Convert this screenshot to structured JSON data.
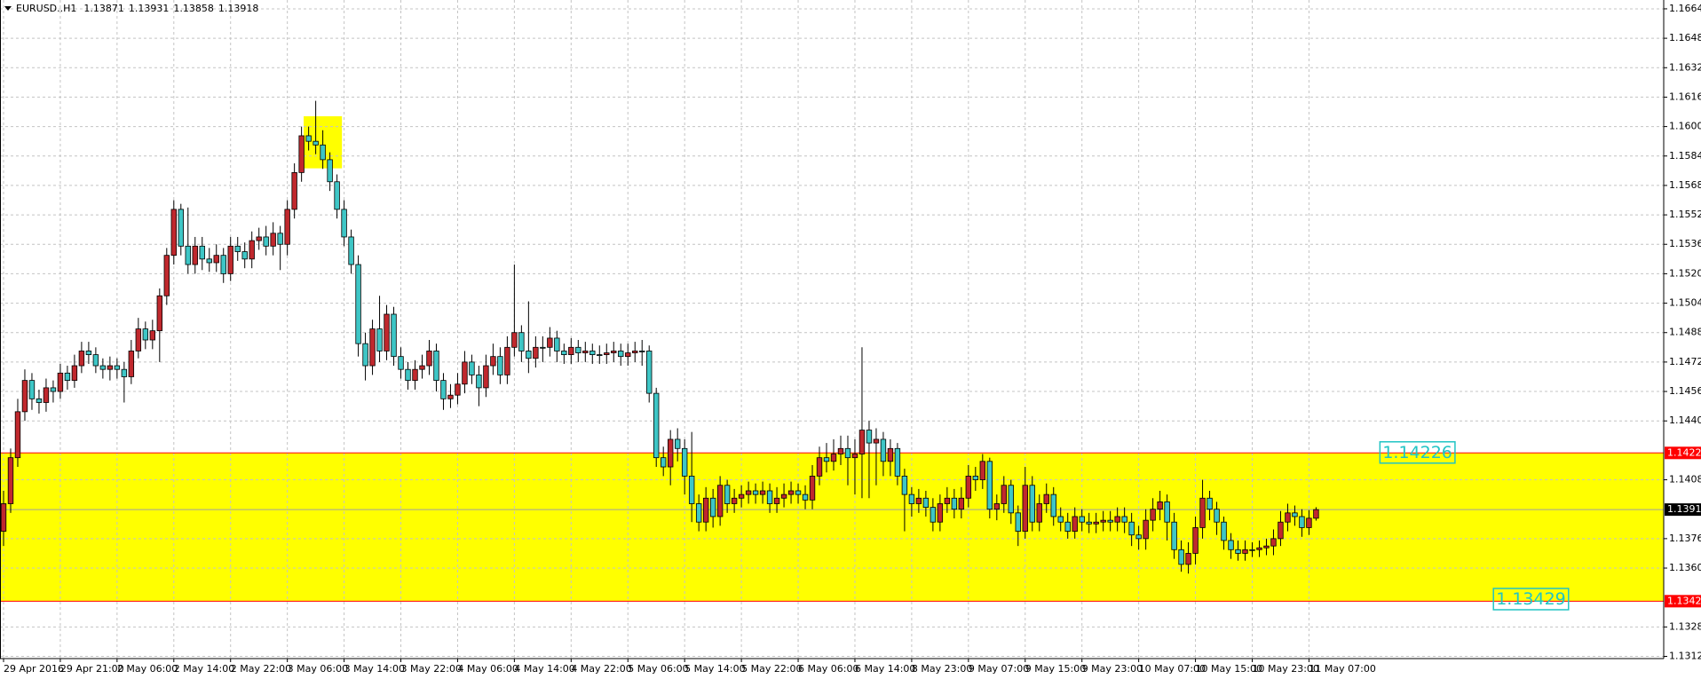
{
  "chart_data": {
    "type": "candlestick",
    "symbol": "EURUSD..H1",
    "open": [
      1.138,
      1.1395,
      1.142,
      1.1445,
      1.1462,
      1.1452,
      1.145,
      1.1458,
      1.1456,
      1.1466,
      1.1462,
      1.147,
      1.1478,
      1.1476,
      1.147,
      1.1468,
      1.147,
      1.1468,
      1.1464,
      1.1478,
      1.149,
      1.1484,
      1.1489,
      1.1508,
      1.153,
      1.1555,
      1.1535,
      1.1525,
      1.1535,
      1.1528,
      1.1526,
      1.153,
      1.152,
      1.1535,
      1.1532,
      1.1528,
      1.1538,
      1.154,
      1.1535,
      1.1542,
      1.1536,
      1.1555,
      1.1575,
      1.1595,
      1.1592,
      1.159,
      1.1582,
      1.157,
      1.1555,
      1.154,
      1.1525,
      1.1482,
      1.147,
      1.149,
      1.1478,
      1.1498,
      1.1475,
      1.1468,
      1.1462,
      1.1468,
      1.147,
      1.1478,
      1.1462,
      1.1452,
      1.1454,
      1.146,
      1.1472,
      1.1465,
      1.1458,
      1.147,
      1.1475,
      1.1465,
      1.148,
      1.1488,
      1.1478,
      1.1474,
      1.148,
      1.148,
      1.1485,
      1.1478,
      1.1476,
      1.148,
      1.1477,
      1.1478,
      1.1476,
      1.1476,
      1.1477,
      1.1478,
      1.1475,
      1.1477,
      1.1478,
      1.1478,
      1.1455,
      1.142,
      1.1415,
      1.143,
      1.1425,
      1.141,
      1.1395,
      1.1385,
      1.1398,
      1.1388,
      1.1405,
      1.1395,
      1.1398,
      1.14,
      1.1402,
      1.14,
      1.1402,
      1.1395,
      1.1398,
      1.14,
      1.1402,
      1.14,
      1.1397,
      1.141,
      1.142,
      1.1418,
      1.1422,
      1.1425,
      1.142,
      1.1422,
      1.1435,
      1.1428,
      1.143,
      1.1418,
      1.1425,
      1.141,
      1.14,
      1.1395,
      1.1398,
      1.1393,
      1.1385,
      1.1395,
      1.1398,
      1.1392,
      1.1398,
      1.141,
      1.1408,
      1.1418,
      1.1392,
      1.1395,
      1.1405,
      1.139,
      1.138,
      1.1405,
      1.1385,
      1.1395,
      1.14,
      1.1388,
      1.1385,
      1.138,
      1.1388,
      1.1385,
      1.1384,
      1.1385,
      1.1386,
      1.1385,
      1.1388,
      1.1385,
      1.1378,
      1.1376,
      1.1386,
      1.1392,
      1.1396,
      1.1385,
      1.137,
      1.1362,
      1.1368,
      1.1382,
      1.1398,
      1.1392,
      1.1385,
      1.1375,
      1.137,
      1.1368,
      1.137,
      1.137,
      1.1371,
      1.1372,
      1.1376,
      1.1385,
      1.139,
      1.1388,
      1.1382,
      1.13871
    ],
    "high": [
      1.1402,
      1.1425,
      1.1452,
      1.1468,
      1.1466,
      1.1457,
      1.1463,
      1.1462,
      1.1471,
      1.147,
      1.1476,
      1.1483,
      1.1483,
      1.148,
      1.1474,
      1.1475,
      1.1474,
      1.1472,
      1.1484,
      1.1496,
      1.1494,
      1.1495,
      1.1512,
      1.1534,
      1.156,
      1.1558,
      1.1556,
      1.154,
      1.154,
      1.1534,
      1.1536,
      1.1534,
      1.154,
      1.154,
      1.1537,
      1.1543,
      1.1545,
      1.1546,
      1.1548,
      1.1546,
      1.156,
      1.158,
      1.16,
      1.16,
      1.1614,
      1.1598,
      1.1586,
      1.1574,
      1.156,
      1.1544,
      1.153,
      1.1488,
      1.1495,
      1.1508,
      1.1503,
      1.1502,
      1.148,
      1.1472,
      1.1473,
      1.1476,
      1.1484,
      1.1482,
      1.1466,
      1.146,
      1.1466,
      1.1478,
      1.1476,
      1.147,
      1.1476,
      1.1482,
      1.148,
      1.1486,
      1.1525,
      1.1492,
      1.1505,
      1.1486,
      1.1486,
      1.1491,
      1.1489,
      1.1482,
      1.1485,
      1.1484,
      1.1483,
      1.1482,
      1.1481,
      1.1482,
      1.1483,
      1.1482,
      1.1482,
      1.1483,
      1.1484,
      1.1481,
      1.1458,
      1.1426,
      1.1435,
      1.1436,
      1.143,
      1.1434,
      1.14,
      1.1404,
      1.1403,
      1.141,
      1.1408,
      1.1403,
      1.1405,
      1.1407,
      1.1406,
      1.1407,
      1.1406,
      1.1404,
      1.1406,
      1.1407,
      1.1406,
      1.1405,
      1.1416,
      1.1426,
      1.1428,
      1.143,
      1.1432,
      1.1432,
      1.143,
      1.148,
      1.144,
      1.1436,
      1.1434,
      1.143,
      1.1428,
      1.1414,
      1.1404,
      1.1403,
      1.1402,
      1.1398,
      1.14,
      1.1404,
      1.1403,
      1.1404,
      1.1416,
      1.1415,
      1.1422,
      1.142,
      1.14,
      1.141,
      1.1408,
      1.1394,
      1.1415,
      1.141,
      1.14,
      1.1406,
      1.1404,
      1.1393,
      1.139,
      1.1393,
      1.1392,
      1.139,
      1.139,
      1.1391,
      1.1391,
      1.1393,
      1.1393,
      1.139,
      1.1383,
      1.1392,
      1.1398,
      1.1402,
      1.14,
      1.139,
      1.1375,
      1.1374,
      1.1388,
      1.1408,
      1.1402,
      1.1396,
      1.1388,
      1.1379,
      1.1375,
      1.1375,
      1.1374,
      1.1375,
      1.1376,
      1.1381,
      1.1391,
      1.1395,
      1.1394,
      1.1392,
      1.13915,
      1.13931
    ],
    "low": [
      1.1372,
      1.139,
      1.1415,
      1.144,
      1.1446,
      1.1444,
      1.1445,
      1.145,
      1.1452,
      1.1457,
      1.1458,
      1.1466,
      1.1471,
      1.1466,
      1.1463,
      1.1462,
      1.1463,
      1.145,
      1.146,
      1.1474,
      1.1479,
      1.1479,
      1.1472,
      1.1503,
      1.1525,
      1.153,
      1.152,
      1.152,
      1.1522,
      1.1521,
      1.1521,
      1.1515,
      1.1516,
      1.1527,
      1.1523,
      1.1523,
      1.1533,
      1.153,
      1.153,
      1.1522,
      1.153,
      1.155,
      1.157,
      1.1587,
      1.1585,
      1.1577,
      1.1565,
      1.155,
      1.1535,
      1.152,
      1.1475,
      1.1462,
      1.1465,
      1.1472,
      1.1473,
      1.147,
      1.1463,
      1.1457,
      1.1457,
      1.1463,
      1.1465,
      1.1456,
      1.1446,
      1.1447,
      1.1449,
      1.1455,
      1.146,
      1.1448,
      1.1453,
      1.1465,
      1.146,
      1.146,
      1.1475,
      1.1472,
      1.1466,
      1.1469,
      1.1472,
      1.1475,
      1.1472,
      1.1471,
      1.1471,
      1.1472,
      1.1472,
      1.1471,
      1.1471,
      1.1471,
      1.1472,
      1.147,
      1.147,
      1.1472,
      1.147,
      1.145,
      1.1415,
      1.141,
      1.1405,
      1.1418,
      1.14,
      1.1385,
      1.138,
      1.138,
      1.1382,
      1.1383,
      1.139,
      1.139,
      1.1393,
      1.1395,
      1.1395,
      1.1395,
      1.139,
      1.139,
      1.1393,
      1.1395,
      1.1395,
      1.1392,
      1.1392,
      1.1405,
      1.1412,
      1.1413,
      1.1416,
      1.1405,
      1.14,
      1.1398,
      1.1398,
      1.1405,
      1.141,
      1.141,
      1.1405,
      1.138,
      1.1388,
      1.139,
      1.1388,
      1.138,
      1.138,
      1.139,
      1.1387,
      1.1387,
      1.1393,
      1.1402,
      1.1403,
      1.1387,
      1.1386,
      1.139,
      1.1384,
      1.1372,
      1.1376,
      1.138,
      1.138,
      1.139,
      1.1383,
      1.138,
      1.1376,
      1.1376,
      1.138,
      1.1379,
      1.1379,
      1.138,
      1.138,
      1.138,
      1.1379,
      1.1372,
      1.137,
      1.137,
      1.138,
      1.1386,
      1.1375,
      1.1365,
      1.1358,
      1.1357,
      1.1362,
      1.1376,
      1.1386,
      1.1378,
      1.137,
      1.1365,
      1.1364,
      1.1364,
      1.1366,
      1.1366,
      1.1367,
      1.1367,
      1.1372,
      1.138,
      1.1383,
      1.1377,
      1.1378,
      1.13858
    ],
    "close": [
      1.1395,
      1.142,
      1.1445,
      1.1462,
      1.1452,
      1.145,
      1.1458,
      1.1456,
      1.1466,
      1.1462,
      1.147,
      1.1478,
      1.1476,
      1.147,
      1.1468,
      1.147,
      1.1468,
      1.1464,
      1.1478,
      1.149,
      1.1484,
      1.1489,
      1.1508,
      1.153,
      1.1555,
      1.1535,
      1.1525,
      1.1535,
      1.1528,
      1.1526,
      1.153,
      1.152,
      1.1535,
      1.1532,
      1.1528,
      1.1538,
      1.154,
      1.1535,
      1.1542,
      1.1536,
      1.1555,
      1.1575,
      1.1595,
      1.1592,
      1.159,
      1.1582,
      1.157,
      1.1555,
      1.154,
      1.1525,
      1.1482,
      1.147,
      1.149,
      1.1478,
      1.1498,
      1.1475,
      1.1468,
      1.1462,
      1.1468,
      1.147,
      1.1478,
      1.1462,
      1.1452,
      1.1454,
      1.146,
      1.1472,
      1.1465,
      1.1458,
      1.147,
      1.1475,
      1.1465,
      1.148,
      1.1488,
      1.1478,
      1.1474,
      1.148,
      1.148,
      1.1485,
      1.1478,
      1.1476,
      1.148,
      1.1477,
      1.1478,
      1.1476,
      1.1476,
      1.1477,
      1.1478,
      1.1475,
      1.1477,
      1.1478,
      1.1478,
      1.1455,
      1.142,
      1.1415,
      1.143,
      1.1425,
      1.141,
      1.1395,
      1.1385,
      1.1398,
      1.1388,
      1.1405,
      1.1395,
      1.1398,
      1.14,
      1.1402,
      1.14,
      1.1402,
      1.1395,
      1.1398,
      1.14,
      1.1402,
      1.14,
      1.1397,
      1.141,
      1.142,
      1.1418,
      1.1422,
      1.1425,
      1.142,
      1.1422,
      1.1435,
      1.1428,
      1.143,
      1.1418,
      1.1425,
      1.141,
      1.14,
      1.1395,
      1.1398,
      1.1393,
      1.1385,
      1.1395,
      1.1398,
      1.1392,
      1.1398,
      1.141,
      1.1408,
      1.1418,
      1.1392,
      1.1395,
      1.1405,
      1.139,
      1.138,
      1.1405,
      1.1385,
      1.1395,
      1.14,
      1.1388,
      1.1385,
      1.138,
      1.1388,
      1.1385,
      1.1384,
      1.1385,
      1.1386,
      1.1385,
      1.1388,
      1.1385,
      1.1378,
      1.1376,
      1.1386,
      1.1392,
      1.1396,
      1.1385,
      1.137,
      1.1362,
      1.1368,
      1.1382,
      1.1398,
      1.1392,
      1.1385,
      1.1375,
      1.137,
      1.1368,
      1.137,
      1.137,
      1.1371,
      1.1372,
      1.1376,
      1.1385,
      1.139,
      1.1388,
      1.1382,
      1.13871,
      1.13918
    ],
    "up_color": "#c0282d",
    "down_color": "#3ec6c6",
    "wick_color": "#000000",
    "xlim": [
      -0.5,
      234
    ],
    "xticks": [
      {
        "value": 0,
        "label": "29 Apr 2016"
      },
      {
        "value": 8,
        "label": "29 Apr 21:00"
      },
      {
        "value": 16,
        "label": "2 May 06:00"
      },
      {
        "value": 24,
        "label": "2 May 14:00"
      },
      {
        "value": 32,
        "label": "2 May 22:00"
      },
      {
        "value": 40,
        "label": "3 May 06:00"
      },
      {
        "value": 48,
        "label": "3 May 14:00"
      },
      {
        "value": 56,
        "label": "3 May 22:00"
      },
      {
        "value": 64,
        "label": "4 May 06:00"
      },
      {
        "value": 72,
        "label": "4 May 14:00"
      },
      {
        "value": 80,
        "label": "4 May 22:00"
      },
      {
        "value": 88,
        "label": "5 May 06:00"
      },
      {
        "value": 96,
        "label": "5 May 14:00"
      },
      {
        "value": 104,
        "label": "5 May 22:00"
      },
      {
        "value": 112,
        "label": "6 May 06:00"
      },
      {
        "value": 120,
        "label": "6 May 14:00"
      },
      {
        "value": 128,
        "label": "8 May 23:00"
      },
      {
        "value": 136,
        "label": "9 May 07:00"
      },
      {
        "value": 144,
        "label": "9 May 15:00"
      },
      {
        "value": 152,
        "label": "9 May 23:00"
      },
      {
        "value": 160,
        "label": "10 May 07:00"
      },
      {
        "value": 168,
        "label": "10 May 15:00"
      },
      {
        "value": 176,
        "label": "10 May 23:00"
      },
      {
        "value": 184,
        "label": "11 May 07:00"
      }
    ],
    "ylim": [
      1.13108,
      1.16688
    ],
    "yticks": [
      {
        "value": 1.1664,
        "label": "1.16640"
      },
      {
        "value": 1.1648,
        "label": "1.16480"
      },
      {
        "value": 1.1632,
        "label": "1.16320"
      },
      {
        "value": 1.1616,
        "label": "1.16160"
      },
      {
        "value": 1.16,
        "label": "1.16000"
      },
      {
        "value": 1.1584,
        "label": "1.15840"
      },
      {
        "value": 1.1568,
        "label": "1.15680"
      },
      {
        "value": 1.1552,
        "label": "1.15520"
      },
      {
        "value": 1.1536,
        "label": "1.15360"
      },
      {
        "value": 1.152,
        "label": "1.15200"
      },
      {
        "value": 1.1504,
        "label": "1.15040"
      },
      {
        "value": 1.1488,
        "label": "1.14880"
      },
      {
        "value": 1.1472,
        "label": "1.14720"
      },
      {
        "value": 1.1456,
        "label": "1.14560"
      },
      {
        "value": 1.144,
        "label": "1.14400"
      },
      {
        "value": 1.1408,
        "label": "1.14080"
      },
      {
        "value": 1.1376,
        "label": "1.13760"
      },
      {
        "value": 1.136,
        "label": "1.13600"
      },
      {
        "value": 1.1328,
        "label": "1.13280"
      },
      {
        "value": 1.1312,
        "label": "1.13120"
      }
    ],
    "grid": true,
    "zones": [
      {
        "y": [
          1.14226,
          1.1342
        ],
        "color": "#ffff00"
      },
      {
        "y": [
          1.16056,
          1.15773
        ],
        "x": [
          42.3,
          47.7
        ],
        "color": "#ffff00"
      }
    ],
    "levels": [
      {
        "value": 1.14226,
        "color": "#ff0000"
      },
      {
        "value": 1.1342,
        "label": "1.13420",
        "color": "#ff0000"
      }
    ],
    "price_texts": [
      {
        "value": 1.14226,
        "x": 194,
        "color": "#21c4c4"
      },
      {
        "value": 1.13429,
        "x": 210,
        "color": "#21c4c4"
      }
    ]
  }
}
